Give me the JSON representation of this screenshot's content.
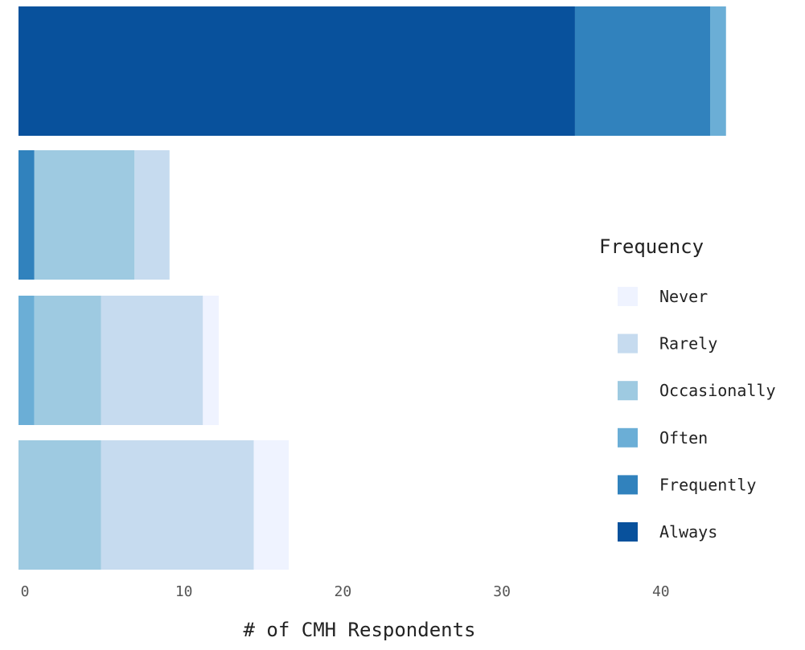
{
  "chart_data": {
    "type": "bar",
    "orientation": "horizontal",
    "stacked": true,
    "title": "",
    "xlabel": "# of CMH Respondents",
    "ylabel": "",
    "xlim": [
      0,
      45
    ],
    "x_ticks": [
      0,
      10,
      20,
      30,
      40
    ],
    "grid": false,
    "legend": {
      "title": "Frequency",
      "position": "right"
    },
    "series": [
      {
        "name": "Always",
        "color": "#08519c",
        "values": [
          35,
          0,
          0,
          0
        ]
      },
      {
        "name": "Frequently",
        "color": "#3182bd",
        "values": [
          8.5,
          1,
          0,
          0
        ]
      },
      {
        "name": "Often",
        "color": "#6baed6",
        "values": [
          1,
          0,
          1,
          0
        ]
      },
      {
        "name": "Occasionally",
        "color": "#9ecae1",
        "values": [
          0,
          6.3,
          4.2,
          5.2
        ]
      },
      {
        "name": "Rarely",
        "color": "#c6dbef",
        "values": [
          0,
          2.2,
          6.4,
          9.6
        ]
      },
      {
        "name": "Never",
        "color": "#eff3ff",
        "values": [
          0,
          0,
          1,
          2.2
        ]
      }
    ],
    "legend_order": [
      "Never",
      "Rarely",
      "Occasionally",
      "Often",
      "Frequently",
      "Always"
    ]
  }
}
